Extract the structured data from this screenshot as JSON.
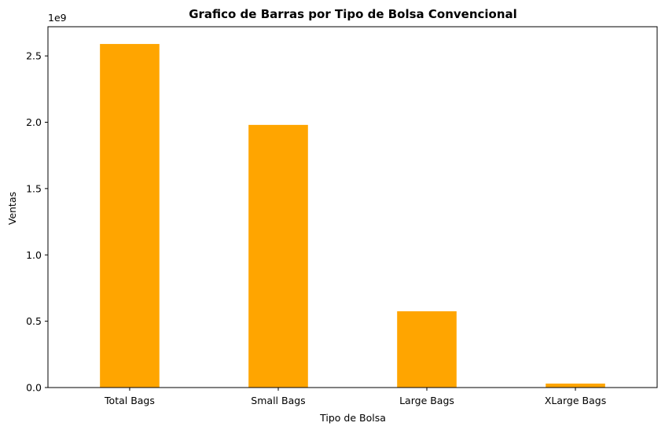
{
  "chart_data": {
    "type": "bar",
    "title": "Grafico de Barras por Tipo de Bolsa Convencional",
    "xlabel": "Tipo de Bolsa",
    "ylabel": "Ventas",
    "y_offset_label": "1e9",
    "categories": [
      "Total Bags",
      "Small Bags",
      "Large Bags",
      "XLarge Bags"
    ],
    "values": [
      2590000000.0,
      1980000000.0,
      575000000.0,
      30000000.0
    ],
    "ylim": [
      0,
      2720000000.0
    ],
    "y_ticks": [
      0,
      500000000.0,
      1000000000.0,
      1500000000.0,
      2000000000.0,
      2500000000.0
    ],
    "y_tick_labels": [
      "0.0",
      "0.5",
      "1.0",
      "1.5",
      "2.0",
      "2.5"
    ],
    "bar_color": "#ffa500",
    "grid": false,
    "legend": "none"
  }
}
